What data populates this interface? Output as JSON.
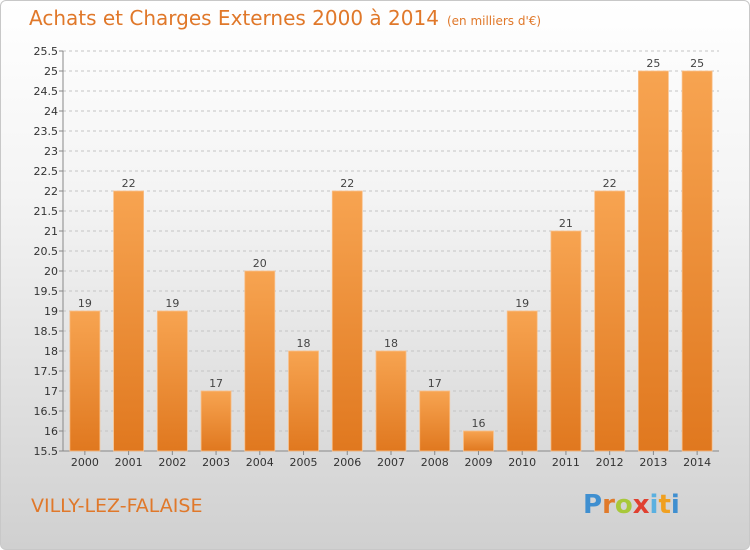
{
  "header": {
    "title": "Achats et Charges Externes 2000 à 2014",
    "unit": "(en milliers d'€)"
  },
  "footer": {
    "location": "VILLY-LEZ-FALAISE",
    "logo_text": "Proxiti"
  },
  "colors": {
    "bar_light": "#f7a451",
    "bar_dark": "#e0781f",
    "title": "#e0782a"
  },
  "chart_data": {
    "type": "bar",
    "title": "Achats et Charges Externes 2000 à 2014",
    "subtitle": "(en milliers d'€)",
    "xlabel": "",
    "ylabel": "",
    "categories": [
      "2000",
      "2001",
      "2002",
      "2003",
      "2004",
      "2005",
      "2006",
      "2007",
      "2008",
      "2009",
      "2010",
      "2011",
      "2012",
      "2013",
      "2014"
    ],
    "values": [
      19,
      22,
      19,
      17,
      20,
      18,
      22,
      18,
      17,
      16,
      19,
      21,
      22,
      25,
      25
    ],
    "ylim": [
      15.5,
      25.5
    ],
    "yticks": [
      "15.5",
      "16",
      "16.5",
      "17",
      "17.5",
      "18",
      "18.5",
      "19",
      "19.5",
      "20",
      "20.5",
      "21",
      "21.5",
      "22",
      "22.5",
      "23",
      "23.5",
      "24",
      "24.5",
      "25",
      "25.5"
    ],
    "grid": true,
    "legend": "none"
  }
}
